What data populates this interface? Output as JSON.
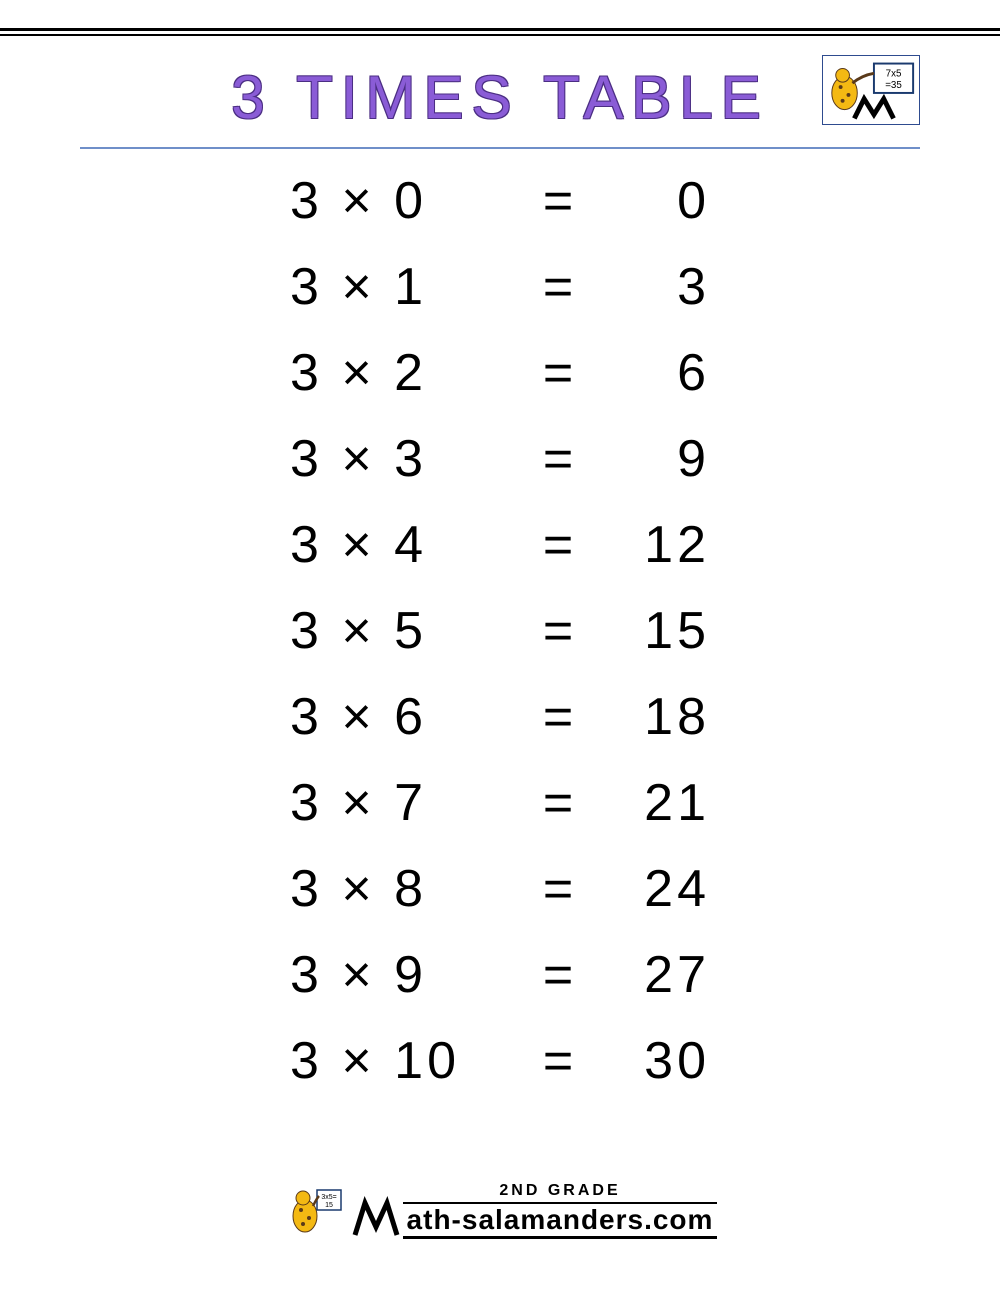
{
  "title": "3 TIMES TABLE",
  "title_color": "#8a5cd6",
  "title_outline": "#4b2e83",
  "title_fontsize": 60,
  "title_letter_spacing": 8,
  "underline_color": "#6f8fc9",
  "background_color": "#ffffff",
  "text_color": "#000000",
  "row_fontsize": 52,
  "row_spacing": 34,
  "multiply_symbol": "×",
  "equals_symbol": "=",
  "multiplicand": 3,
  "rows": [
    {
      "a": 3,
      "b": 0,
      "result": 0
    },
    {
      "a": 3,
      "b": 1,
      "result": 3
    },
    {
      "a": 3,
      "b": 2,
      "result": 6
    },
    {
      "a": 3,
      "b": 3,
      "result": 9
    },
    {
      "a": 3,
      "b": 4,
      "result": 12
    },
    {
      "a": 3,
      "b": 5,
      "result": 15
    },
    {
      "a": 3,
      "b": 6,
      "result": 18
    },
    {
      "a": 3,
      "b": 7,
      "result": 21
    },
    {
      "a": 3,
      "b": 8,
      "result": 24
    },
    {
      "a": 3,
      "b": 9,
      "result": 27
    },
    {
      "a": 3,
      "b": 10,
      "result": 30
    }
  ],
  "footer": {
    "grade": "2ND GRADE",
    "site_prefix": "ATH-SALAMANDERS.COM",
    "site_full": "Math-Salamanders.com"
  },
  "corner_logo": {
    "icon": "salamander-board-icon",
    "board_text": "7x5\n=35",
    "border_color": "#2e4b8f"
  },
  "footer_logo": {
    "icon": "salamander-board-icon",
    "board_text": "3x5=\n15"
  },
  "colors": {
    "salamander_body": "#f4b913",
    "salamander_spots": "#5a3a1a",
    "board_bg": "#ffffff",
    "board_border": "#1a3a6e",
    "m_stroke": "#000000"
  }
}
